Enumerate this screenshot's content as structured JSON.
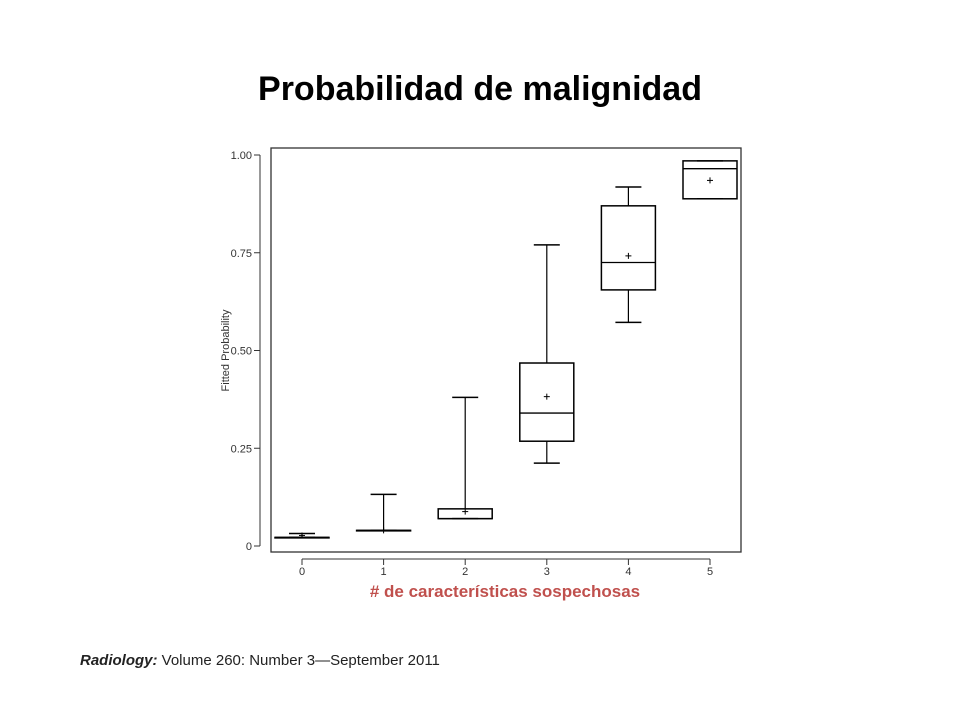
{
  "slide": {
    "title": "Probabilidad de malignidad",
    "citation": {
      "journal": "Radiology:",
      "detail": " Volume 260: Number 3—September 2011"
    }
  },
  "colors": {
    "xlabel": "#c0504d",
    "ink": "#000000",
    "frame": "#333333",
    "axis_text": "#333333"
  },
  "chart_data": {
    "type": "box",
    "xlabel": "# de características sospechosas",
    "ylabel": "Fitted Probability",
    "categories": [
      "0",
      "1",
      "2",
      "3",
      "4",
      "5"
    ],
    "ylim": [
      0,
      1.0
    ],
    "yticks": [
      {
        "value": 0,
        "label": "0"
      },
      {
        "value": 0.25,
        "label": "0.25"
      },
      {
        "value": 0.5,
        "label": "0.50"
      },
      {
        "value": 0.75,
        "label": "0.75"
      },
      {
        "value": 1.0,
        "label": "1.00"
      }
    ],
    "grid": false,
    "boxes": [
      {
        "category": "0",
        "min": 0.022,
        "q1": 0.022,
        "median": 0.022,
        "q3": 0.022,
        "max": 0.032,
        "mean": 0.027
      },
      {
        "category": "1",
        "min": 0.04,
        "q1": 0.04,
        "median": 0.04,
        "q3": 0.04,
        "max": 0.132,
        "mean": 0.04
      },
      {
        "category": "2",
        "min": 0.07,
        "q1": 0.07,
        "median": 0.07,
        "q3": 0.095,
        "max": 0.38,
        "mean": 0.088
      },
      {
        "category": "3",
        "min": 0.212,
        "q1": 0.268,
        "median": 0.34,
        "q3": 0.468,
        "max": 0.77,
        "mean": 0.382
      },
      {
        "category": "4",
        "min": 0.572,
        "q1": 0.655,
        "median": 0.725,
        "q3": 0.87,
        "max": 0.918,
        "mean": 0.742
      },
      {
        "category": "5",
        "min": 0.888,
        "q1": 0.888,
        "median": 0.965,
        "q3": 0.985,
        "max": 0.985,
        "mean": 0.935
      }
    ]
  }
}
